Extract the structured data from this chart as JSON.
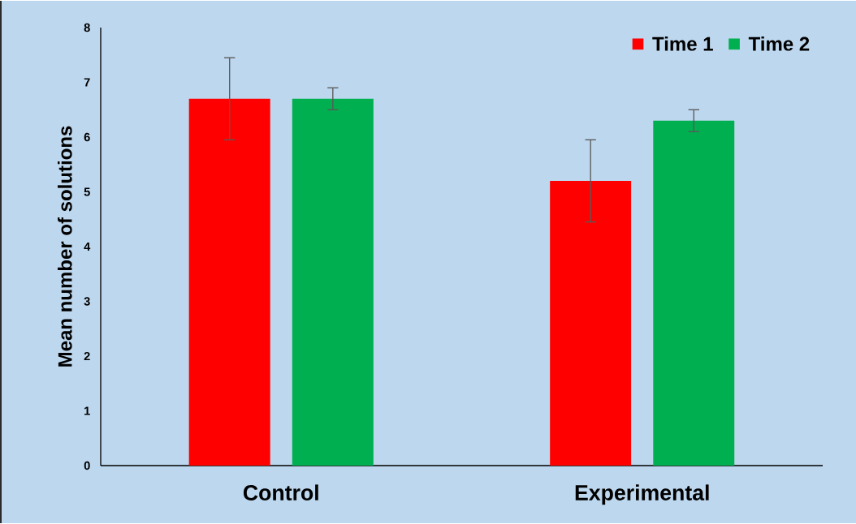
{
  "chart_data": {
    "type": "bar",
    "ylabel": "Mean number of solutions",
    "categories": [
      "Control",
      "Experimental"
    ],
    "series": [
      {
        "name": "Time 1",
        "color": "#ff0000",
        "values": [
          6.7,
          5.2
        ],
        "errors": [
          0.75,
          0.75
        ]
      },
      {
        "name": "Time 2",
        "color": "#00b050",
        "values": [
          6.7,
          6.3
        ],
        "errors": [
          0.2,
          0.2
        ]
      }
    ],
    "ylim": [
      0,
      8
    ],
    "yticks": [
      0,
      1,
      2,
      3,
      4,
      5,
      6,
      7,
      8
    ],
    "legend": "top right"
  }
}
